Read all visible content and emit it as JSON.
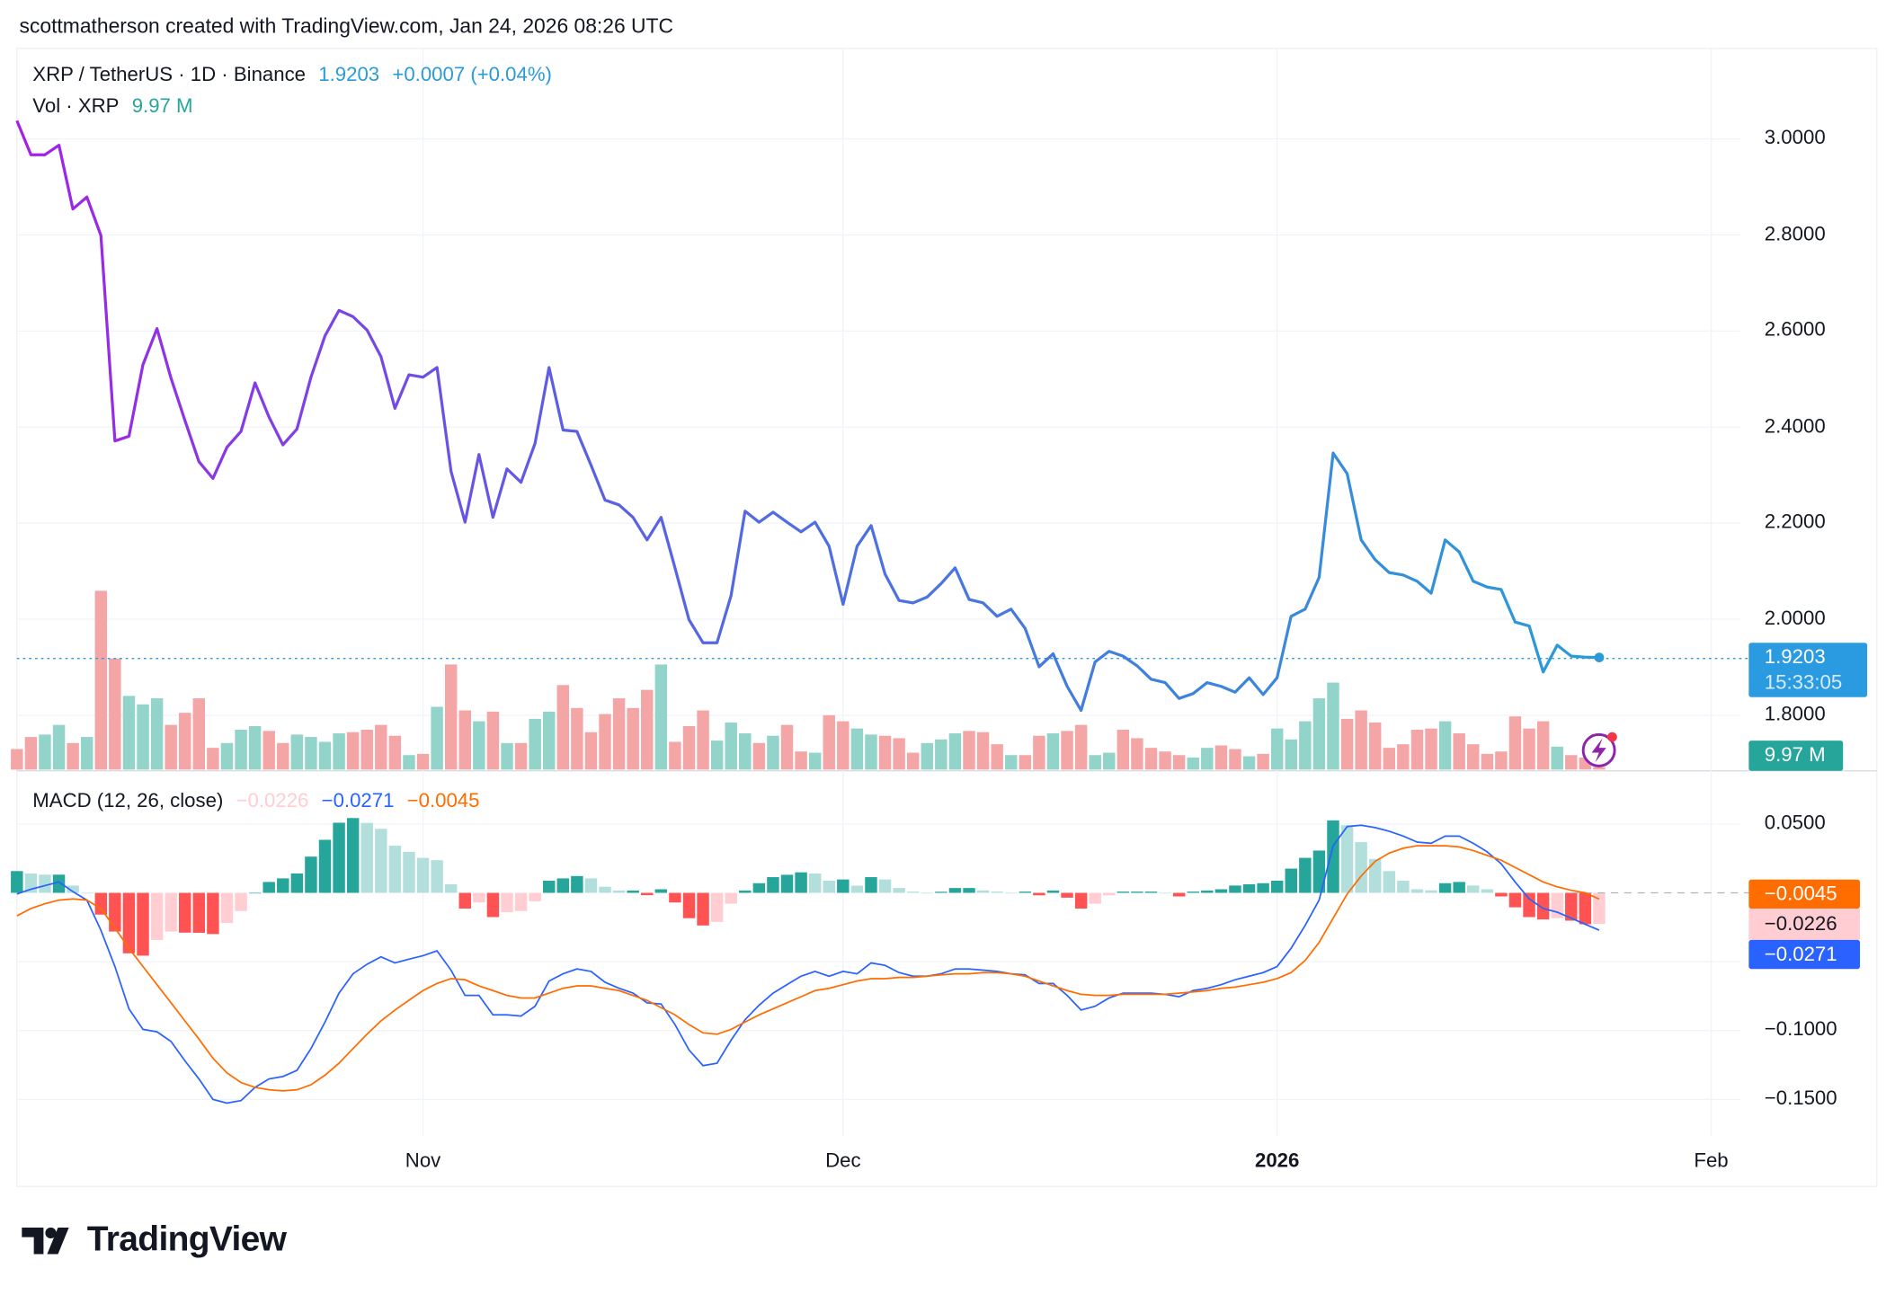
{
  "credit": "scottmatherson created with TradingView.com, Jan 24, 2026 08:26 UTC",
  "legend": {
    "symbol": "XRP / TetherUS · 1D · Binance",
    "last": "1.9203",
    "change": "+0.0007 (+0.04%)",
    "vol_label": "Vol · XRP",
    "vol_value": "9.97 M",
    "macd_label": "MACD (12, 26, close)",
    "macd_hist": "−0.0226",
    "macd_line": "−0.0271",
    "macd_signal": "−0.0045"
  },
  "price_tag": {
    "price": "1.9203",
    "countdown": "15:33:05"
  },
  "volume_tag": "9.97 M",
  "macd_tags": {
    "signal": "−0.0045",
    "hist": "−0.0226",
    "macd": "−0.0271"
  },
  "logo_text": "TradingView",
  "colors": {
    "price_start": "#9b27e8",
    "price_end": "#2a9bd8",
    "vol_up": "#92d3ca",
    "vol_down": "#f4a5a6",
    "macd": "#2962ff",
    "signal": "#ff6d00",
    "hist_up_strong": "#26a69a",
    "hist_up_weak": "#b2dfdb",
    "hist_down_strong": "#ff5252",
    "hist_down_weak": "#ffcdd2"
  },
  "chart_data": [
    {
      "type": "line",
      "title": "XRP / TetherUS · 1D · Binance",
      "yticks": [
        "3.0000",
        "2.8000",
        "2.6000",
        "2.4000",
        "2.2000",
        "2.0000",
        "1.8000"
      ],
      "ylim": [
        1.68,
        3.06
      ],
      "xticks": [
        "Nov",
        "Dec",
        "2026",
        "Feb"
      ],
      "grid": true,
      "months": [
        {
          "month": "2025-10",
          "from_day": 3,
          "close": [
            3.038,
            2.967,
            2.967,
            2.987,
            2.854,
            2.879,
            2.799,
            2.371,
            2.381,
            2.53,
            2.605,
            2.502,
            2.414,
            2.328,
            2.293,
            2.358,
            2.391,
            2.492,
            2.421,
            2.363,
            2.396,
            2.504,
            2.59,
            2.643,
            2.63,
            2.602,
            2.547,
            2.439,
            2.509
          ],
          "volume": [
            85,
            135,
            145,
            185,
            110,
            135,
            740,
            460,
            305,
            270,
            295,
            185,
            235,
            295,
            90,
            110,
            165,
            180,
            160,
            110,
            145,
            135,
            115,
            150,
            155,
            165,
            185,
            140,
            60
          ],
          "macd": [
            -0.0009,
            0.0026,
            0.0053,
            0.0079,
            0.0009,
            -0.0053,
            -0.0272,
            -0.0535,
            -0.0842,
            -0.0991,
            -0.1009,
            -0.1079,
            -0.1219,
            -0.1351,
            -0.15,
            -0.1526,
            -0.1509,
            -0.1412,
            -0.1351,
            -0.1333,
            -0.1289,
            -0.1131,
            -0.0939,
            -0.0728,
            -0.0588,
            -0.0518,
            -0.0465,
            -0.0509,
            -0.0482
          ],
          "signal": [
            -0.0167,
            -0.0114,
            -0.0079,
            -0.0053,
            -0.0044,
            -0.0053,
            -0.0114,
            -0.0254,
            -0.0403,
            -0.0535,
            -0.0667,
            -0.0798,
            -0.093,
            -0.1061,
            -0.1201,
            -0.1307,
            -0.1377,
            -0.1412,
            -0.143,
            -0.1438,
            -0.143,
            -0.1394,
            -0.1324,
            -0.1237,
            -0.1131,
            -0.1026,
            -0.093,
            -0.0851,
            -0.078
          ]
        },
        {
          "month": "2025-11",
          "from_day": 1,
          "close": [
            2.504,
            2.524,
            2.308,
            2.202,
            2.343,
            2.212,
            2.313,
            2.285,
            2.366,
            2.524,
            2.394,
            2.391,
            2.321,
            2.248,
            2.238,
            2.212,
            2.165,
            2.212,
            2.107,
            1.999,
            1.951,
            1.951,
            2.049,
            2.225,
            2.202,
            2.223,
            2.202,
            2.182,
            2.202,
            2.152
          ],
          "volume": [
            65,
            260,
            435,
            245,
            200,
            240,
            110,
            110,
            210,
            240,
            350,
            255,
            155,
            230,
            295,
            255,
            330,
            435,
            115,
            180,
            245,
            120,
            195,
            150,
            110,
            140,
            185,
            75,
            70,
            225
          ],
          "macd": [
            -0.0456,
            -0.0421,
            -0.0561,
            -0.0745,
            -0.0745,
            -0.0886,
            -0.0886,
            -0.0895,
            -0.0824,
            -0.064,
            -0.0588,
            -0.0553,
            -0.057,
            -0.0649,
            -0.0693,
            -0.0728,
            -0.0798,
            -0.0807,
            -0.0956,
            -0.114,
            -0.1254,
            -0.1237,
            -0.107,
            -0.0921,
            -0.0816,
            -0.0728,
            -0.0667,
            -0.0605,
            -0.057,
            -0.0605
          ],
          "signal": [
            -0.071,
            -0.0658,
            -0.0623,
            -0.0631,
            -0.0675,
            -0.071,
            -0.0745,
            -0.0763,
            -0.0763,
            -0.0728,
            -0.0693,
            -0.0675,
            -0.0675,
            -0.0693,
            -0.071,
            -0.0745,
            -0.0781,
            -0.0833,
            -0.0886,
            -0.0956,
            -0.1017,
            -0.1026,
            -0.0991,
            -0.0938,
            -0.0886,
            -0.0842,
            -0.0798,
            -0.0754,
            -0.071,
            -0.0693
          ]
        },
        {
          "month": "2025-12",
          "from_day": 1,
          "close": [
            2.031,
            2.152,
            2.195,
            2.094,
            2.039,
            2.034,
            2.046,
            2.074,
            2.107,
            2.041,
            2.034,
            2.006,
            2.021,
            1.981,
            1.901,
            1.928,
            1.86,
            1.81,
            1.911,
            1.933,
            1.923,
            1.903,
            1.875,
            1.868,
            1.835,
            1.845,
            1.868,
            1.86,
            1.848,
            1.878,
            1.843
          ],
          "volume": [
            200,
            170,
            145,
            140,
            130,
            70,
            110,
            125,
            150,
            160,
            155,
            105,
            60,
            60,
            140,
            150,
            160,
            185,
            60,
            70,
            165,
            130,
            90,
            75,
            60,
            50,
            90,
            100,
            85,
            55,
            65
          ],
          "macd": [
            -0.057,
            -0.0588,
            -0.0509,
            -0.0526,
            -0.0579,
            -0.0605,
            -0.0605,
            -0.0588,
            -0.0553,
            -0.0553,
            -0.0561,
            -0.057,
            -0.0588,
            -0.0596,
            -0.0658,
            -0.0658,
            -0.0745,
            -0.0851,
            -0.0824,
            -0.0763,
            -0.0728,
            -0.0728,
            -0.0728,
            -0.0737,
            -0.0754,
            -0.071,
            -0.0693,
            -0.0667,
            -0.0631,
            -0.0605,
            -0.0579
          ],
          "signal": [
            -0.0667,
            -0.064,
            -0.0623,
            -0.0623,
            -0.0614,
            -0.0614,
            -0.0605,
            -0.0596,
            -0.0588,
            -0.0588,
            -0.0579,
            -0.0579,
            -0.0588,
            -0.0605,
            -0.064,
            -0.0675,
            -0.071,
            -0.0737,
            -0.0745,
            -0.0745,
            -0.0737,
            -0.0737,
            -0.0737,
            -0.0737,
            -0.0728,
            -0.0719,
            -0.071,
            -0.0693,
            -0.0684,
            -0.0667,
            -0.0649
          ]
        },
        {
          "month": "2026-01",
          "from_day": 1,
          "close": [
            1.878,
            2.006,
            2.021,
            2.087,
            2.346,
            2.303,
            2.165,
            2.124,
            2.097,
            2.092,
            2.079,
            2.054,
            2.165,
            2.14,
            2.079,
            2.067,
            2.062,
            1.994,
            1.986,
            1.89,
            1.946,
            1.923,
            1.921,
            1.9203
          ],
          "volume": [
            170,
            125,
            200,
            295,
            360,
            210,
            245,
            195,
            90,
            105,
            165,
            170,
            200,
            150,
            105,
            65,
            75,
            220,
            170,
            200,
            95,
            60,
            50,
            9.97
          ],
          "macd": [
            -0.0535,
            -0.0403,
            -0.0237,
            -0.0053,
            0.0342,
            0.0482,
            0.0491,
            0.0474,
            0.0447,
            0.0412,
            0.0368,
            0.036,
            0.0412,
            0.0412,
            0.036,
            0.0298,
            0.0211,
            0.0079,
            -0.0044,
            -0.0114,
            -0.014,
            -0.0184,
            -0.0228,
            -0.0271
          ],
          "signal": [
            -0.0623,
            -0.0579,
            -0.0491,
            -0.036,
            -0.0184,
            -0.0009,
            0.0123,
            0.0228,
            0.0289,
            0.0324,
            0.0342,
            0.0342,
            0.0342,
            0.0333,
            0.0307,
            0.0272,
            0.0237,
            0.0184,
            0.0132,
            0.0079,
            0.0044,
            0.0018,
            0.0,
            -0.0045
          ]
        }
      ],
      "volume_unit": "M"
    },
    {
      "type": "bar",
      "title": "MACD (12, 26, close)",
      "yticks": [
        "0.0500",
        "−0.1000",
        "−0.1500"
      ],
      "ylim": [
        -0.17,
        0.075
      ]
    }
  ]
}
